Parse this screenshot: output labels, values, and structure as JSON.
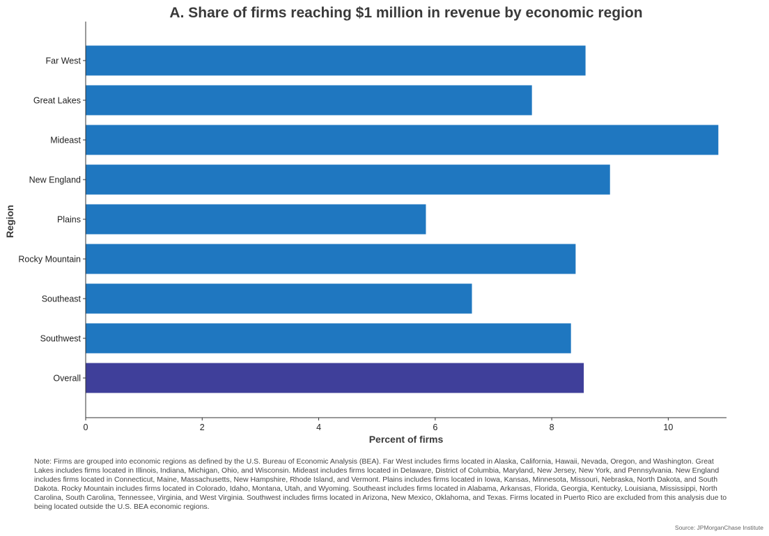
{
  "chart_data": {
    "type": "bar",
    "orientation": "horizontal",
    "title": "A. Share of firms reaching $1 million in revenue by economic region",
    "xlabel": "Percent of firms",
    "ylabel": "Region",
    "categories": [
      "Far West",
      "Great Lakes",
      "Mideast",
      "New England",
      "Plains",
      "Rocky Mountain",
      "Southeast",
      "Southwest",
      "Overall"
    ],
    "values": [
      8.58,
      7.66,
      10.86,
      9.0,
      5.84,
      8.41,
      6.63,
      8.33,
      8.55
    ],
    "bar_colors": [
      "#1f77c0",
      "#1f77c0",
      "#1f77c0",
      "#1f77c0",
      "#1f77c0",
      "#1f77c0",
      "#1f77c0",
      "#1f77c0",
      "#3f3f9a"
    ],
    "xlim": [
      0,
      11
    ],
    "xticks": [
      0,
      2,
      4,
      6,
      8,
      10
    ],
    "grid": false,
    "legend": "none"
  },
  "note": "Note: Firms are grouped into economic regions as defined by the U.S. Bureau of Economic Analysis (BEA). Far West includes firms located in Alaska, California, Hawaii, Nevada, Oregon, and Washington. Great Lakes includes firms located in Illinois, Indiana, Michigan, Ohio, and Wisconsin. Mideast includes firms located in Delaware, District of Columbia, Maryland, New Jersey, New York, and Pennsylvania. New England includes firms located in Connecticut, Maine, Massachusetts, New Hampshire, Rhode Island, and Vermont. Plains includes firms located in Iowa, Kansas, Minnesota, Missouri, Nebraska, North Dakota, and South Dakota. Rocky Mountain includes firms located in Colorado, Idaho, Montana, Utah, and Wyoming. Southeast includes firms located in Alabama, Arkansas, Florida, Georgia, Kentucky, Louisiana, Mississippi, North Carolina, South Carolina, Tennessee, Virginia, and West Virginia. Southwest includes firms located in Arizona, New Mexico, Oklahoma, and Texas. Firms located in Puerto Rico are excluded from this analysis due to being located outside the U.S. BEA economic regions.",
  "source": "Source: JPMorganChase Institute"
}
